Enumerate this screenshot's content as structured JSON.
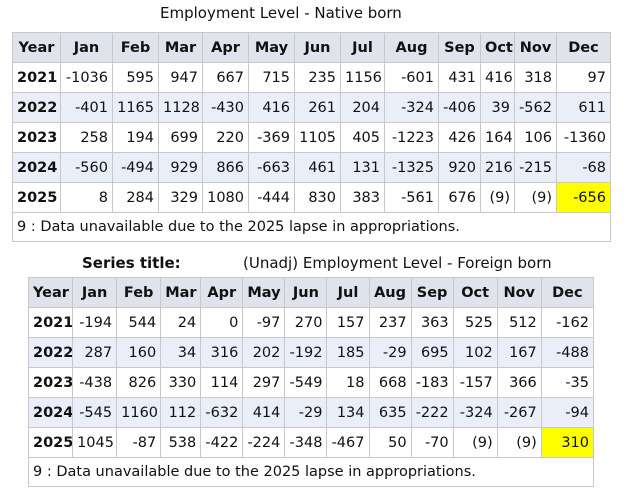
{
  "tables": [
    {
      "title": "Employment Level - Native born",
      "header": [
        "Year",
        "Jan",
        "Feb",
        "Mar",
        "Apr",
        "May",
        "Jun",
        "Jul",
        "Aug",
        "Sep",
        "Oct",
        "Nov",
        "Dec"
      ],
      "rows": [
        [
          "2021",
          "-1036",
          "595",
          "947",
          "667",
          "715",
          "235",
          "1156",
          "-601",
          "431",
          "416",
          "318",
          "97"
        ],
        [
          "2022",
          "-401",
          "1165",
          "1128",
          "-430",
          "416",
          "261",
          "204",
          "-324",
          "-406",
          "39",
          "-562",
          "611"
        ],
        [
          "2023",
          "258",
          "194",
          "699",
          "220",
          "-369",
          "1105",
          "405",
          "-1223",
          "426",
          "164",
          "106",
          "-1360"
        ],
        [
          "2024",
          "-560",
          "-494",
          "929",
          "866",
          "-663",
          "461",
          "131",
          "-1325",
          "920",
          "216",
          "-215",
          "-68"
        ],
        [
          "2025",
          "8",
          "284",
          "329",
          "1080",
          "-444",
          "830",
          "383",
          "-561",
          "676",
          "(9)",
          "(9)",
          "-656"
        ]
      ],
      "footnote": "9 : Data unavailable due to the 2025 lapse in appropriations."
    },
    {
      "series_label": "Series title:",
      "title": "(Unadj) Employment Level - Foreign born",
      "header": [
        "Year",
        "Jan",
        "Feb",
        "Mar",
        "Apr",
        "May",
        "Jun",
        "Jul",
        "Aug",
        "Sep",
        "Oct",
        "Nov",
        "Dec"
      ],
      "rows": [
        [
          "2021",
          "-194",
          "544",
          "24",
          "0",
          "-97",
          "270",
          "157",
          "237",
          "363",
          "525",
          "512",
          "-162"
        ],
        [
          "2022",
          "287",
          "160",
          "34",
          "316",
          "202",
          "-192",
          "185",
          "-29",
          "695",
          "102",
          "167",
          "-488"
        ],
        [
          "2023",
          "-438",
          "826",
          "330",
          "114",
          "297",
          "-549",
          "18",
          "668",
          "-183",
          "-157",
          "366",
          "-35"
        ],
        [
          "2024",
          "-545",
          "1160",
          "112",
          "-632",
          "414",
          "-29",
          "134",
          "635",
          "-222",
          "-324",
          "-267",
          "-94"
        ],
        [
          "2025",
          "1045",
          "-87",
          "538",
          "-422",
          "-224",
          "-348",
          "-467",
          "50",
          "-70",
          "(9)",
          "(9)",
          "310"
        ]
      ],
      "footnote": "9 : Data unavailable due to the 2025 lapse in appropriations."
    }
  ]
}
